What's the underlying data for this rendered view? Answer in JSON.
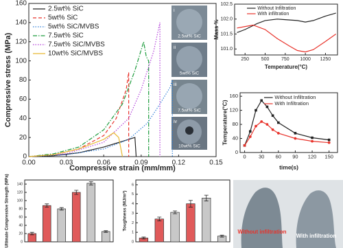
{
  "chart_data": [
    {
      "type": "line",
      "xlabel": "Compressive strain (mm/mm)",
      "ylabel": "Compressive stress (MPa)",
      "xlim": [
        0,
        0.15
      ],
      "ylim": [
        0,
        160
      ],
      "xticks": [
        {
          "value": 0,
          "label": "0.00"
        },
        0.03,
        0.06,
        0.09,
        0.12,
        0.15
      ],
      "yticks": [
        0,
        20,
        40,
        60,
        80,
        100,
        120,
        140,
        160
      ],
      "series": [
        {
          "name": "2.5wt% SiC",
          "color": "#222222",
          "dash": "solid",
          "x": [
            0,
            0.02,
            0.04,
            0.06,
            0.07,
            0.08,
            0.085,
            0.086
          ],
          "values": [
            0,
            1,
            4,
            10,
            14,
            18,
            20,
            0
          ]
        },
        {
          "name": "5wt% SiC",
          "color": "#e8322a",
          "dash": "dashed",
          "x": [
            0,
            0.02,
            0.04,
            0.06,
            0.07,
            0.078,
            0.08,
            0.08
          ],
          "values": [
            0,
            2,
            8,
            22,
            40,
            70,
            88,
            0
          ]
        },
        {
          "name": "5wt% SiC/MVBS",
          "color": "#2f7fd8",
          "dash": "dotted",
          "x": [
            0,
            0.03,
            0.06,
            0.08,
            0.095,
            0.105,
            0.113,
            0.115,
            0.115
          ],
          "values": [
            0,
            2,
            8,
            18,
            35,
            55,
            72,
            80,
            0
          ]
        },
        {
          "name": "7.5wt% SiC",
          "color": "#1a9a3a",
          "dash": "dashdot",
          "x": [
            0,
            0.02,
            0.04,
            0.06,
            0.075,
            0.085,
            0.092,
            0.094,
            0.095,
            0.096,
            0.096
          ],
          "values": [
            0,
            3,
            10,
            28,
            55,
            90,
            120,
            105,
            102,
            100,
            0
          ]
        },
        {
          "name": "7.5wt% SiC/MVBS",
          "color": "#b03ad8",
          "dash": "dotted",
          "x": [
            0,
            0.03,
            0.06,
            0.08,
            0.09,
            0.1,
            0.105,
            0.105
          ],
          "values": [
            0,
            3,
            15,
            40,
            70,
            110,
            140,
            0
          ]
        },
        {
          "name": "10wt% SiC/MVBS",
          "color": "#e8b830",
          "dash": "solid",
          "x": [
            0,
            0.02,
            0.04,
            0.06,
            0.068,
            0.072,
            0.075
          ],
          "values": [
            0,
            2,
            8,
            18,
            25,
            20,
            0
          ]
        }
      ]
    },
    {
      "type": "line",
      "xlabel": "Temperature(°C)",
      "ylabel": "Mass %",
      "xlim": [
        120,
        1400
      ],
      "ylim": [
        100.8,
        102.5
      ],
      "xticks": [
        250,
        500,
        750,
        1000,
        1250
      ],
      "yticks": [
        {
          "value": 101,
          "label": "101.0"
        },
        101.5,
        {
          "value": 102,
          "label": "102.0"
        },
        102.5
      ],
      "series": [
        {
          "name": "Without Infiltration",
          "color": "#222222",
          "dash": "solid",
          "x": [
            150,
            250,
            400,
            500,
            650,
            750,
            900,
            1000,
            1100,
            1250,
            1380
          ],
          "values": [
            101.55,
            101.65,
            101.85,
            101.95,
            102,
            101.98,
            101.95,
            101.9,
            101.95,
            102.1,
            102.2
          ]
        },
        {
          "name": "With infiltration",
          "color": "#e8322a",
          "dash": "solid",
          "x": [
            150,
            250,
            350,
            500,
            650,
            800,
            900,
            1000,
            1100,
            1250,
            1380
          ],
          "values": [
            101.7,
            101.75,
            101.8,
            101.65,
            101.35,
            101.1,
            100.95,
            100.9,
            100.98,
            101.25,
            101.5
          ]
        }
      ]
    },
    {
      "type": "line",
      "xlabel": "time(s)",
      "ylabel": "Temperature(°C)",
      "xlim": [
        -8,
        165
      ],
      "ylim": [
        0,
        170
      ],
      "xticks": [
        0,
        30,
        60,
        90,
        120,
        150
      ],
      "yticks": [
        0,
        40,
        80,
        120,
        160
      ],
      "series": [
        {
          "name": "Without Infiltration",
          "color": "#222222",
          "dash": "solid",
          "marker": "square",
          "x": [
            0,
            10,
            20,
            30,
            40,
            50,
            60,
            90,
            120,
            150
          ],
          "values": [
            20,
            60,
            120,
            148,
            130,
            105,
            85,
            55,
            42,
            36
          ]
        },
        {
          "name": "With Infiltration",
          "color": "#e8322a",
          "dash": "solid",
          "marker": "circle",
          "x": [
            0,
            10,
            20,
            30,
            40,
            50,
            60,
            90,
            120,
            150
          ],
          "values": [
            20,
            45,
            75,
            88,
            80,
            65,
            55,
            40,
            32,
            28
          ]
        }
      ]
    },
    {
      "type": "bar",
      "ylabel": "Ultimate Compressive Strength (MPa)",
      "ylim": [
        0,
        150
      ],
      "yticks": [
        0,
        20,
        40,
        60,
        80,
        100,
        120,
        140
      ],
      "values": [
        20,
        88,
        80,
        120,
        142,
        25
      ],
      "errors": [
        3,
        4,
        3,
        5,
        4,
        2
      ],
      "colors": [
        "#e05a5a",
        "#e05a5a",
        "#c8c8c8",
        "#e05a5a",
        "#c8c8c8",
        "#c8c8c8"
      ]
    },
    {
      "type": "bar",
      "ylabel": "Toughness (MJ/m³)",
      "ylim": [
        0,
        6.5
      ],
      "yticks": [
        0,
        1,
        2,
        3,
        4,
        5,
        6
      ],
      "values": [
        0.4,
        2.4,
        3.1,
        4.0,
        4.6,
        0.6
      ],
      "errors": [
        0.1,
        0.2,
        0.15,
        0.35,
        0.3,
        0.1
      ],
      "colors": [
        "#e05a5a",
        "#e05a5a",
        "#c8c8c8",
        "#e05a5a",
        "#c8c8c8",
        "#c8c8c8"
      ]
    }
  ],
  "photos": [
    {
      "numeral": "i",
      "caption": "2.5wt% SiC"
    },
    {
      "numeral": "ii",
      "caption": "5wt% SiC"
    },
    {
      "numeral": "iii",
      "caption": "7.5wt% SiC"
    },
    {
      "numeral": "iv",
      "caption": "10wt% SiC"
    }
  ],
  "infiltration_photo": {
    "left": "Without infiltration",
    "right": "With infiltration"
  }
}
